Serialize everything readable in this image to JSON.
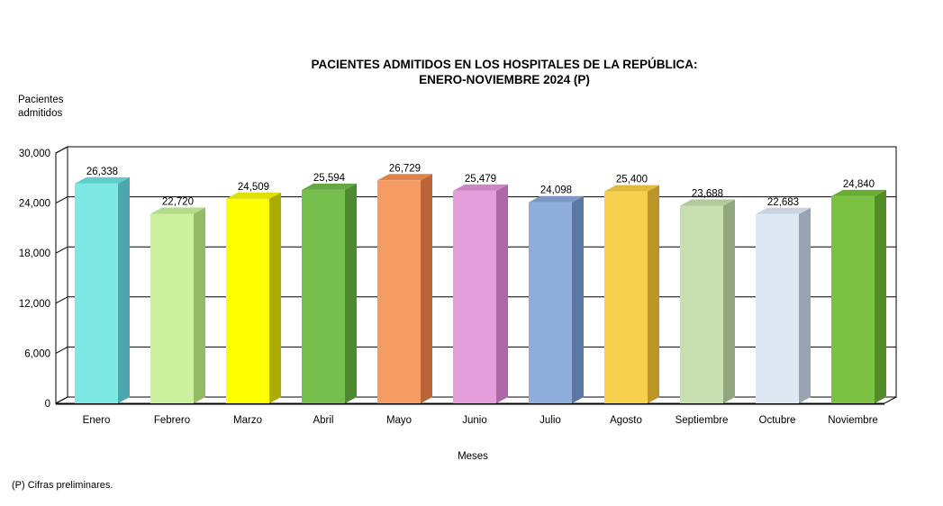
{
  "title": {
    "line1": "PACIENTES ADMITIDOS EN LOS HOSPITALES DE LA REPÚBLICA:",
    "line2": "ENERO-NOVIEMBRE 2024 (P)"
  },
  "y_axis_title": {
    "line1": "Pacientes",
    "line2": "admitidos"
  },
  "x_axis_title": "Meses",
  "footnote": "(P) Cifras preliminares.",
  "chart_data": {
    "type": "bar",
    "style": "3d-column",
    "title": "PACIENTES ADMITIDOS EN LOS HOSPITALES DE LA REPÚBLICA: ENERO-NOVIEMBRE 2024 (P)",
    "xlabel": "Meses",
    "ylabel": "Pacientes admitidos",
    "ylim": [
      0,
      30000
    ],
    "grid": true,
    "legend": false,
    "y_tick_values": [
      0,
      6000,
      12000,
      18000,
      24000,
      30000
    ],
    "y_tick_labels": [
      "0",
      "6,000",
      "12,000",
      "18,000",
      "24,000",
      "30,000"
    ],
    "categories": [
      "Enero",
      "Febrero",
      "Marzo",
      "Abril",
      "Mayo",
      "Junio",
      "Julio",
      "Agosto",
      "Septiembre",
      "Octubre",
      "Noviembre"
    ],
    "values": [
      26338,
      22720,
      24509,
      25594,
      26729,
      25479,
      24098,
      25400,
      23688,
      22683,
      24840
    ],
    "value_labels": [
      "26,338",
      "22,720",
      "24,509",
      "25,594",
      "26,729",
      "25,479",
      "24,098",
      "25,400",
      "23,688",
      "22,683",
      "24,840"
    ],
    "bar_colors": [
      {
        "front": "#7DE8E4",
        "top": "#5ECDCC",
        "side": "#4CA7AC"
      },
      {
        "front": "#CCF19E",
        "top": "#B3DB89",
        "side": "#94BB66"
      },
      {
        "front": "#FFFF00",
        "top": "#E0E005",
        "side": "#ABAB00"
      },
      {
        "front": "#76BF4E",
        "top": "#65A843",
        "side": "#4F8A33"
      },
      {
        "front": "#F59B63",
        "top": "#E08348",
        "side": "#BC6438"
      },
      {
        "front": "#E59EDC",
        "top": "#CC86C4",
        "side": "#AC67A4"
      },
      {
        "front": "#8FAEDC",
        "top": "#7C97C4",
        "side": "#5C77A4"
      },
      {
        "front": "#F6CF4D",
        "top": "#E2B93A",
        "side": "#BC9428"
      },
      {
        "front": "#C8DFB1",
        "top": "#B2C99B",
        "side": "#92A77E"
      },
      {
        "front": "#DEE8F2",
        "top": "#C8D4E2",
        "side": "#99A3B2"
      },
      {
        "front": "#7CC242",
        "top": "#69AC33",
        "side": "#528C28"
      }
    ],
    "wall_color": "#FFFFFF",
    "line_color": "#000000"
  }
}
